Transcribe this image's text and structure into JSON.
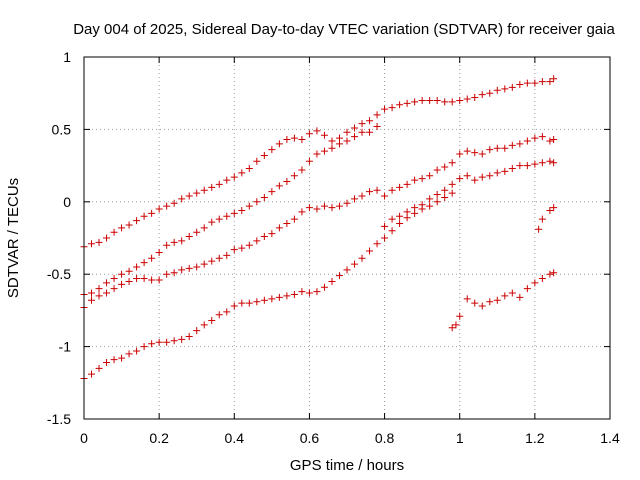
{
  "chart_data": {
    "type": "scatter",
    "title": "Day 004 of 2025, Sidereal Day-to-day VTEC variation (SDTVAR) for receiver gaia",
    "xlabel": "GPS time / hours",
    "ylabel": "SDTVAR / TECUs",
    "xlim": [
      0,
      1.4
    ],
    "ylim": [
      -1.5,
      1
    ],
    "xticks": [
      0,
      0.2,
      0.4,
      0.6,
      0.8,
      1,
      1.2,
      1.4
    ],
    "xtick_labels": [
      "0",
      "0.2",
      "0.4",
      "0.6",
      "0.8",
      "1",
      "1.2",
      "1.4"
    ],
    "yticks": [
      -1.5,
      -1,
      -0.5,
      0,
      0.5,
      1
    ],
    "ytick_labels": [
      "-1.5",
      "-1",
      "-0.5",
      "0",
      "0.5",
      "1"
    ],
    "grid": true,
    "marker": "+",
    "color": "#cc0000",
    "series": [
      {
        "name": "trace-1",
        "points": [
          [
            0.0,
            -0.31
          ],
          [
            0.02,
            -0.29
          ],
          [
            0.04,
            -0.28
          ],
          [
            0.06,
            -0.25
          ],
          [
            0.08,
            -0.21
          ],
          [
            0.1,
            -0.18
          ],
          [
            0.12,
            -0.16
          ],
          [
            0.14,
            -0.13
          ],
          [
            0.16,
            -0.1
          ],
          [
            0.18,
            -0.08
          ],
          [
            0.2,
            -0.05
          ],
          [
            0.22,
            -0.03
          ],
          [
            0.24,
            -0.01
          ],
          [
            0.26,
            0.02
          ],
          [
            0.28,
            0.04
          ],
          [
            0.3,
            0.06
          ],
          [
            0.32,
            0.08
          ],
          [
            0.34,
            0.1
          ],
          [
            0.36,
            0.12
          ],
          [
            0.38,
            0.15
          ],
          [
            0.4,
            0.17
          ],
          [
            0.42,
            0.2
          ],
          [
            0.44,
            0.23
          ],
          [
            0.46,
            0.28
          ],
          [
            0.48,
            0.32
          ],
          [
            0.5,
            0.36
          ],
          [
            0.52,
            0.4
          ],
          [
            0.54,
            0.43
          ],
          [
            0.56,
            0.44
          ],
          [
            0.58,
            0.43
          ],
          [
            0.6,
            0.47
          ],
          [
            0.62,
            0.49
          ],
          [
            0.64,
            0.46
          ],
          [
            0.66,
            0.42
          ],
          [
            0.68,
            0.44
          ],
          [
            0.7,
            0.48
          ],
          [
            0.72,
            0.51
          ],
          [
            0.74,
            0.54
          ],
          [
            0.76,
            0.56
          ],
          [
            0.78,
            0.6
          ],
          [
            0.8,
            0.64
          ],
          [
            0.82,
            0.65
          ],
          [
            0.84,
            0.67
          ],
          [
            0.86,
            0.68
          ],
          [
            0.88,
            0.69
          ],
          [
            0.9,
            0.7
          ],
          [
            0.92,
            0.7
          ],
          [
            0.94,
            0.7
          ],
          [
            0.96,
            0.69
          ],
          [
            0.98,
            0.69
          ],
          [
            1.0,
            0.7
          ],
          [
            1.02,
            0.71
          ],
          [
            1.04,
            0.72
          ],
          [
            1.06,
            0.74
          ],
          [
            1.08,
            0.75
          ],
          [
            1.1,
            0.77
          ],
          [
            1.12,
            0.78
          ],
          [
            1.14,
            0.79
          ],
          [
            1.16,
            0.81
          ],
          [
            1.18,
            0.82
          ],
          [
            1.2,
            0.82
          ],
          [
            1.22,
            0.83
          ],
          [
            1.24,
            0.83
          ],
          [
            1.25,
            0.85
          ]
        ]
      },
      {
        "name": "trace-2",
        "points": [
          [
            0.0,
            -0.64
          ],
          [
            0.02,
            -0.63
          ],
          [
            0.04,
            -0.6
          ],
          [
            0.06,
            -0.56
          ],
          [
            0.08,
            -0.53
          ],
          [
            0.1,
            -0.5
          ],
          [
            0.12,
            -0.48
          ],
          [
            0.14,
            -0.45
          ],
          [
            0.16,
            -0.42
          ],
          [
            0.18,
            -0.39
          ],
          [
            0.2,
            -0.35
          ],
          [
            0.22,
            -0.3
          ],
          [
            0.24,
            -0.28
          ],
          [
            0.26,
            -0.27
          ],
          [
            0.28,
            -0.24
          ],
          [
            0.3,
            -0.21
          ],
          [
            0.32,
            -0.18
          ],
          [
            0.34,
            -0.14
          ],
          [
            0.36,
            -0.12
          ],
          [
            0.38,
            -0.1
          ],
          [
            0.4,
            -0.08
          ],
          [
            0.42,
            -0.06
          ],
          [
            0.44,
            -0.03
          ],
          [
            0.46,
            0.0
          ],
          [
            0.48,
            0.03
          ],
          [
            0.5,
            0.07
          ],
          [
            0.52,
            0.11
          ],
          [
            0.54,
            0.14
          ],
          [
            0.56,
            0.18
          ],
          [
            0.58,
            0.22
          ],
          [
            0.6,
            0.28
          ],
          [
            0.62,
            0.33
          ],
          [
            0.64,
            0.35
          ],
          [
            0.66,
            0.37
          ],
          [
            0.68,
            0.4
          ],
          [
            0.7,
            0.42
          ],
          [
            0.72,
            0.45
          ],
          [
            0.74,
            0.48
          ],
          [
            0.76,
            0.48
          ],
          [
            0.78,
            0.52
          ],
          [
            0.8,
            0.04
          ],
          [
            0.82,
            0.08
          ],
          [
            0.84,
            0.1
          ],
          [
            0.86,
            0.12
          ],
          [
            0.88,
            0.15
          ],
          [
            0.9,
            0.16
          ],
          [
            0.92,
            0.18
          ],
          [
            0.94,
            0.22
          ],
          [
            0.96,
            0.24
          ],
          [
            0.98,
            0.27
          ],
          [
            1.0,
            0.33
          ],
          [
            1.02,
            0.35
          ],
          [
            1.04,
            0.34
          ],
          [
            1.06,
            0.33
          ],
          [
            1.08,
            0.36
          ],
          [
            1.1,
            0.37
          ],
          [
            1.12,
            0.37
          ],
          [
            1.14,
            0.39
          ],
          [
            1.16,
            0.4
          ],
          [
            1.18,
            0.42
          ],
          [
            1.2,
            0.44
          ],
          [
            1.22,
            0.45
          ],
          [
            1.24,
            0.42
          ],
          [
            1.25,
            0.43
          ]
        ]
      },
      {
        "name": "trace-3",
        "points": [
          [
            0.0,
            -0.73
          ],
          [
            0.02,
            -0.68
          ],
          [
            0.04,
            -0.65
          ],
          [
            0.06,
            -0.63
          ],
          [
            0.08,
            -0.6
          ],
          [
            0.1,
            -0.57
          ],
          [
            0.12,
            -0.55
          ],
          [
            0.14,
            -0.53
          ],
          [
            0.16,
            -0.53
          ],
          [
            0.18,
            -0.54
          ],
          [
            0.2,
            -0.54
          ],
          [
            0.22,
            -0.5
          ],
          [
            0.24,
            -0.49
          ],
          [
            0.26,
            -0.47
          ],
          [
            0.28,
            -0.46
          ],
          [
            0.3,
            -0.45
          ],
          [
            0.32,
            -0.43
          ],
          [
            0.34,
            -0.41
          ],
          [
            0.36,
            -0.39
          ],
          [
            0.38,
            -0.37
          ],
          [
            0.4,
            -0.33
          ],
          [
            0.42,
            -0.32
          ],
          [
            0.44,
            -0.3
          ],
          [
            0.46,
            -0.27
          ],
          [
            0.48,
            -0.24
          ],
          [
            0.5,
            -0.22
          ],
          [
            0.52,
            -0.18
          ],
          [
            0.54,
            -0.15
          ],
          [
            0.56,
            -0.12
          ],
          [
            0.58,
            -0.07
          ],
          [
            0.6,
            -0.04
          ],
          [
            0.62,
            -0.05
          ],
          [
            0.64,
            -0.03
          ],
          [
            0.66,
            -0.04
          ],
          [
            0.68,
            -0.03
          ],
          [
            0.7,
            -0.01
          ],
          [
            0.72,
            0.02
          ],
          [
            0.74,
            0.04
          ],
          [
            0.76,
            0.07
          ],
          [
            0.78,
            0.08
          ],
          [
            0.8,
            -0.17
          ],
          [
            0.82,
            -0.12
          ],
          [
            0.84,
            -0.1
          ],
          [
            0.86,
            -0.07
          ],
          [
            0.88,
            -0.04
          ],
          [
            0.9,
            -0.02
          ],
          [
            0.92,
            0.02
          ],
          [
            0.94,
            0.05
          ],
          [
            0.96,
            0.08
          ],
          [
            0.98,
            0.12
          ],
          [
            1.0,
            0.16
          ],
          [
            1.02,
            0.18
          ],
          [
            1.04,
            0.15
          ],
          [
            1.06,
            0.17
          ],
          [
            1.08,
            0.18
          ],
          [
            1.1,
            0.2
          ],
          [
            1.12,
            0.21
          ],
          [
            1.14,
            0.23
          ],
          [
            1.16,
            0.25
          ],
          [
            1.18,
            0.25
          ],
          [
            1.2,
            0.26
          ],
          [
            1.22,
            0.27
          ],
          [
            1.24,
            0.28
          ],
          [
            1.25,
            0.27
          ]
        ]
      },
      {
        "name": "trace-4",
        "points": [
          [
            0.0,
            -1.22
          ],
          [
            0.02,
            -1.19
          ],
          [
            0.04,
            -1.15
          ],
          [
            0.06,
            -1.11
          ],
          [
            0.08,
            -1.09
          ],
          [
            0.1,
            -1.08
          ],
          [
            0.12,
            -1.05
          ],
          [
            0.14,
            -1.03
          ],
          [
            0.16,
            -1.0
          ],
          [
            0.18,
            -0.98
          ],
          [
            0.2,
            -0.97
          ],
          [
            0.22,
            -0.97
          ],
          [
            0.24,
            -0.96
          ],
          [
            0.26,
            -0.95
          ],
          [
            0.28,
            -0.93
          ],
          [
            0.3,
            -0.89
          ],
          [
            0.32,
            -0.85
          ],
          [
            0.34,
            -0.82
          ],
          [
            0.36,
            -0.78
          ],
          [
            0.38,
            -0.76
          ],
          [
            0.4,
            -0.72
          ],
          [
            0.42,
            -0.7
          ],
          [
            0.44,
            -0.7
          ],
          [
            0.46,
            -0.69
          ],
          [
            0.48,
            -0.68
          ],
          [
            0.5,
            -0.67
          ],
          [
            0.52,
            -0.66
          ],
          [
            0.54,
            -0.65
          ],
          [
            0.56,
            -0.64
          ],
          [
            0.58,
            -0.62
          ],
          [
            0.6,
            -0.63
          ],
          [
            0.62,
            -0.62
          ],
          [
            0.64,
            -0.59
          ],
          [
            0.66,
            -0.55
          ],
          [
            0.68,
            -0.51
          ],
          [
            0.7,
            -0.47
          ],
          [
            0.72,
            -0.43
          ],
          [
            0.74,
            -0.39
          ],
          [
            0.76,
            -0.34
          ],
          [
            0.78,
            -0.29
          ],
          [
            0.8,
            -0.25
          ],
          [
            0.82,
            -0.2
          ],
          [
            0.84,
            -0.15
          ],
          [
            0.86,
            -0.11
          ],
          [
            0.88,
            -0.08
          ],
          [
            0.9,
            -0.05
          ],
          [
            0.92,
            -0.03
          ],
          [
            0.94,
            0.0
          ],
          [
            0.96,
            0.03
          ],
          [
            0.98,
            0.06
          ],
          [
            0.98,
            -0.87
          ],
          [
            0.99,
            -0.85
          ],
          [
            1.0,
            -0.79
          ],
          [
            1.02,
            -0.67
          ],
          [
            1.04,
            -0.7
          ],
          [
            1.06,
            -0.72
          ],
          [
            1.08,
            -0.69
          ],
          [
            1.1,
            -0.68
          ],
          [
            1.12,
            -0.65
          ],
          [
            1.14,
            -0.63
          ],
          [
            1.16,
            -0.66
          ],
          [
            1.18,
            -0.6
          ],
          [
            1.2,
            -0.56
          ],
          [
            1.22,
            -0.53
          ],
          [
            1.24,
            -0.5
          ],
          [
            1.25,
            -0.49
          ],
          [
            1.21,
            -0.19
          ],
          [
            1.22,
            -0.12
          ],
          [
            1.24,
            -0.06
          ],
          [
            1.25,
            -0.04
          ]
        ]
      }
    ]
  }
}
